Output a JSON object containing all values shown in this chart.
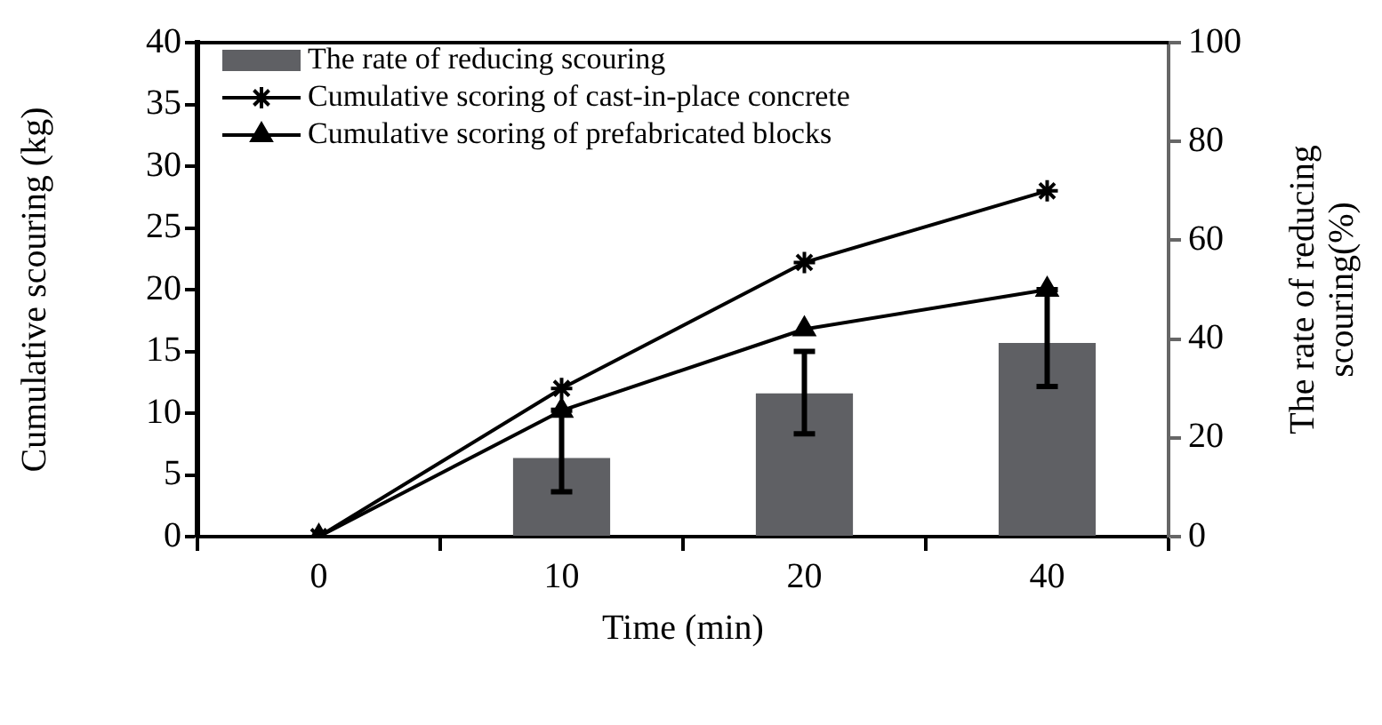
{
  "chart_data": {
    "type": "bar",
    "xlabel": "Time (min)",
    "ylabel": "Cumulative scouring (kg)",
    "y2label": "The rate of reducing scouring(%)",
    "categories": [
      "0",
      "10",
      "20",
      "40"
    ],
    "legend": "top left",
    "series": [
      {
        "name": "The rate of reducing scouring",
        "axis": "y2",
        "color": "#5f6064",
        "values": [
          null,
          15.9,
          29,
          39.2
        ],
        "errors": [
          null,
          [
            9.1,
            25.6
          ],
          [
            20.8,
            37.5
          ],
          [
            30.4,
            50
          ]
        ]
      },
      {
        "name": "Cumulative scoring of cast-in-place concrete",
        "type": "line",
        "color": "#000000",
        "marker": "cross",
        "values": [
          0,
          12,
          22.2,
          28
        ]
      },
      {
        "name": "Cumulative scoring of prefabricated blocks",
        "type": "line",
        "color": "#000000",
        "marker": "triangle",
        "values": [
          0,
          10.2,
          16.8,
          20
        ]
      }
    ],
    "ylim": [
      0,
      40
    ],
    "yticks": [
      0,
      5,
      10,
      15,
      20,
      25,
      30,
      35,
      40
    ],
    "y2lim": [
      0,
      100
    ],
    "y2ticks": [
      0,
      20,
      40,
      60,
      80,
      100
    ]
  }
}
